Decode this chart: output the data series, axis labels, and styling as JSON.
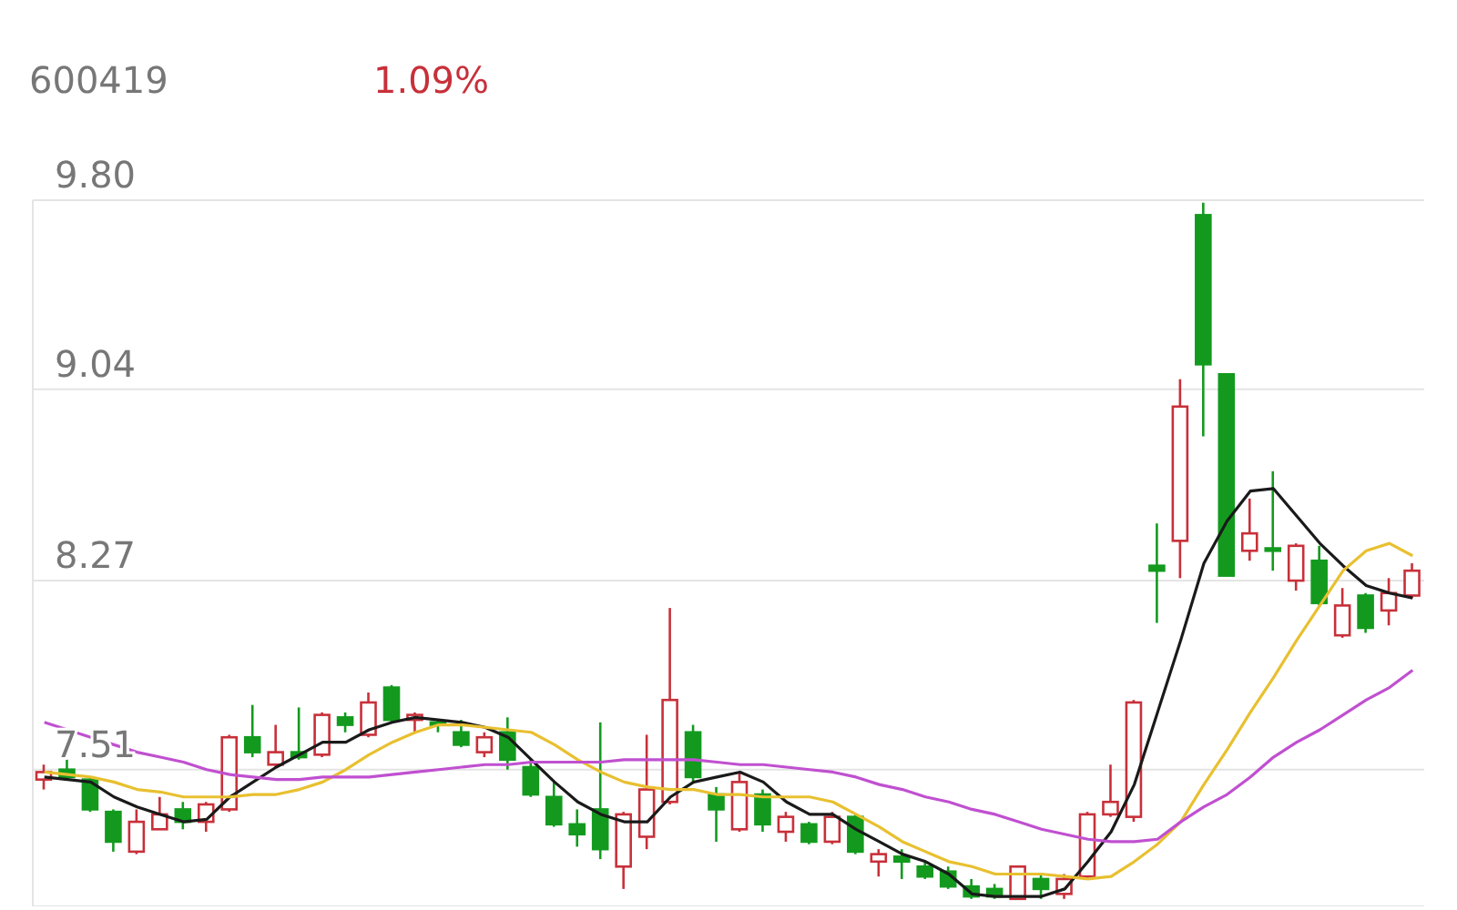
{
  "chart_data": {
    "type": "candlestick",
    "title": "600419",
    "subtitle": "1.09%",
    "categories": [
      null,
      null,
      null,
      null,
      null,
      null,
      null,
      null,
      null,
      null,
      null,
      null,
      null,
      null,
      null,
      null,
      null,
      null,
      null,
      null,
      null,
      null,
      null,
      null,
      null,
      null,
      null,
      null,
      null,
      null,
      null,
      null,
      null,
      null,
      null,
      null,
      null,
      null,
      null,
      null,
      null,
      null,
      null,
      null,
      null,
      null,
      null,
      null,
      null,
      null,
      null,
      null,
      null,
      null,
      null,
      null,
      null,
      null,
      null,
      null
    ],
    "ohlc": [
      [
        7.47,
        7.53,
        7.43,
        7.5
      ],
      [
        7.51,
        7.55,
        7.47,
        7.48
      ],
      [
        7.47,
        7.48,
        7.34,
        7.35
      ],
      [
        7.34,
        7.35,
        7.18,
        7.22
      ],
      [
        7.18,
        7.35,
        7.17,
        7.3
      ],
      [
        7.27,
        7.4,
        7.27,
        7.33
      ],
      [
        7.35,
        7.38,
        7.27,
        7.3
      ],
      [
        7.3,
        7.38,
        7.26,
        7.37
      ],
      [
        7.35,
        7.65,
        7.34,
        7.64
      ],
      [
        7.64,
        7.77,
        7.56,
        7.58
      ],
      [
        7.53,
        7.69,
        7.52,
        7.58
      ],
      [
        7.58,
        7.76,
        7.55,
        7.56
      ],
      [
        7.57,
        7.74,
        7.56,
        7.73
      ],
      [
        7.72,
        7.74,
        7.66,
        7.69
      ],
      [
        7.65,
        7.82,
        7.64,
        7.78
      ],
      [
        7.84,
        7.85,
        7.7,
        7.71
      ],
      [
        7.71,
        7.74,
        7.66,
        7.73
      ],
      [
        7.7,
        7.71,
        7.66,
        7.69
      ],
      [
        7.66,
        7.71,
        7.6,
        7.61
      ],
      [
        7.58,
        7.66,
        7.56,
        7.64
      ],
      [
        7.66,
        7.72,
        7.51,
        7.55
      ],
      [
        7.52,
        7.55,
        7.4,
        7.41
      ],
      [
        7.4,
        7.46,
        7.28,
        7.29
      ],
      [
        7.29,
        7.35,
        7.2,
        7.25
      ],
      [
        7.35,
        7.7,
        7.15,
        7.19
      ],
      [
        7.12,
        7.34,
        7.03,
        7.33
      ],
      [
        7.24,
        7.65,
        7.19,
        7.43
      ],
      [
        7.38,
        8.16,
        7.37,
        7.79
      ],
      [
        7.66,
        7.69,
        7.46,
        7.48
      ],
      [
        7.41,
        7.44,
        7.22,
        7.35
      ],
      [
        7.27,
        7.5,
        7.26,
        7.46
      ],
      [
        7.41,
        7.43,
        7.26,
        7.29
      ],
      [
        7.26,
        7.34,
        7.22,
        7.32
      ],
      [
        7.29,
        7.3,
        7.21,
        7.22
      ],
      [
        7.22,
        7.34,
        7.21,
        7.32
      ],
      [
        7.32,
        7.33,
        7.17,
        7.18
      ],
      [
        7.14,
        7.19,
        7.08,
        7.17
      ],
      [
        7.16,
        7.19,
        7.07,
        7.14
      ],
      [
        7.12,
        7.14,
        7.07,
        7.08
      ],
      [
        7.1,
        7.12,
        7.03,
        7.04
      ],
      [
        7.04,
        7.07,
        6.99,
        7.0
      ],
      [
        7.03,
        7.05,
        6.99,
        7.0
      ],
      [
        6.99,
        7.12,
        6.99,
        7.12
      ],
      [
        7.07,
        7.09,
        6.99,
        7.03
      ],
      [
        7.01,
        7.09,
        6.99,
        7.07
      ],
      [
        7.08,
        7.34,
        7.07,
        7.33
      ],
      [
        7.33,
        7.53,
        7.32,
        7.38
      ],
      [
        7.32,
        7.79,
        7.3,
        7.78
      ],
      [
        8.33,
        8.5,
        8.1,
        8.31
      ],
      [
        8.43,
        9.08,
        8.28,
        8.97
      ],
      [
        9.74,
        9.79,
        8.85,
        9.14
      ],
      [
        9.1,
        9.1,
        8.29,
        8.29
      ],
      [
        8.39,
        8.6,
        8.35,
        8.46
      ],
      [
        8.4,
        8.71,
        8.31,
        8.39
      ],
      [
        8.27,
        8.42,
        8.23,
        8.41
      ],
      [
        8.35,
        8.41,
        8.17,
        8.18
      ],
      [
        8.05,
        8.24,
        8.04,
        8.17
      ],
      [
        8.21,
        8.22,
        8.06,
        8.08
      ],
      [
        8.15,
        8.28,
        8.09,
        8.22
      ],
      [
        8.21,
        8.34,
        8.2,
        8.31
      ]
    ],
    "series": [
      {
        "type": "line",
        "color": "#1a1a1a",
        "values": [
          7.48,
          7.47,
          7.46,
          7.4,
          7.36,
          7.33,
          7.3,
          7.31,
          7.4,
          7.46,
          7.52,
          7.57,
          7.62,
          7.62,
          7.67,
          7.7,
          7.72,
          7.71,
          7.7,
          7.68,
          7.64,
          7.55,
          7.46,
          7.38,
          7.33,
          7.3,
          7.3,
          7.4,
          7.46,
          7.48,
          7.5,
          7.46,
          7.38,
          7.33,
          7.33,
          7.27,
          7.22,
          7.17,
          7.14,
          7.09,
          7.01,
          7.0,
          7.0,
          7.0,
          7.03,
          7.14,
          7.26,
          7.45,
          7.74,
          8.03,
          8.34,
          8.51,
          8.63,
          8.64,
          8.53,
          8.42,
          8.33,
          8.25,
          8.22,
          8.2
        ]
      },
      {
        "type": "line",
        "color": "#e8c030",
        "values": [
          7.5,
          7.49,
          7.48,
          7.46,
          7.43,
          7.42,
          7.4,
          7.4,
          7.4,
          7.41,
          7.41,
          7.43,
          7.46,
          7.51,
          7.57,
          7.62,
          7.66,
          7.69,
          7.69,
          7.68,
          7.67,
          7.66,
          7.61,
          7.55,
          7.5,
          7.46,
          7.44,
          7.43,
          7.43,
          7.41,
          7.41,
          7.4,
          7.4,
          7.4,
          7.38,
          7.33,
          7.28,
          7.22,
          7.18,
          7.14,
          7.12,
          7.09,
          7.09,
          7.09,
          7.08,
          7.07,
          7.08,
          7.14,
          7.21,
          7.3,
          7.45,
          7.59,
          7.74,
          7.88,
          8.03,
          8.17,
          8.31,
          8.39,
          8.42,
          8.37
        ]
      },
      {
        "type": "line",
        "color": "#c050d0",
        "values": [
          7.7,
          7.67,
          7.64,
          7.61,
          7.58,
          7.56,
          7.54,
          7.51,
          7.49,
          7.48,
          7.47,
          7.47,
          7.48,
          7.48,
          7.48,
          7.49,
          7.5,
          7.51,
          7.52,
          7.53,
          7.53,
          7.54,
          7.54,
          7.54,
          7.54,
          7.55,
          7.55,
          7.55,
          7.55,
          7.54,
          7.53,
          7.53,
          7.52,
          7.51,
          7.5,
          7.48,
          7.45,
          7.43,
          7.4,
          7.38,
          7.35,
          7.33,
          7.3,
          7.27,
          7.25,
          7.23,
          7.22,
          7.22,
          7.23,
          7.3,
          7.36,
          7.41,
          7.48,
          7.56,
          7.62,
          7.67,
          7.73,
          7.79,
          7.84,
          7.91
        ]
      }
    ],
    "ylim": [
      6.96,
      9.8
    ],
    "yticks": [
      7.51,
      8.27,
      9.04,
      {
        "value": 9.8,
        "label": "9.80"
      }
    ],
    "grid": "y",
    "tick_labels": "y"
  }
}
